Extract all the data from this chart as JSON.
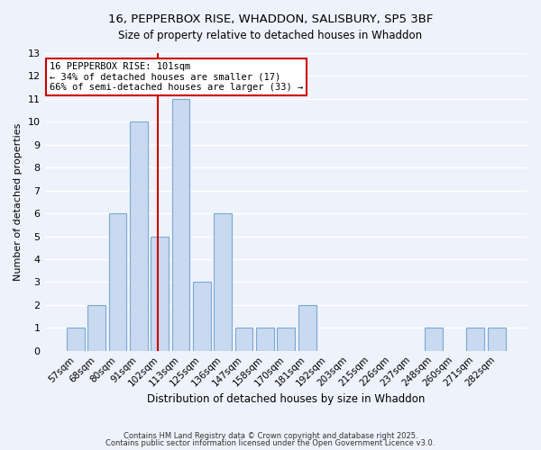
{
  "title1": "16, PEPPERBOX RISE, WHADDON, SALISBURY, SP5 3BF",
  "title2": "Size of property relative to detached houses in Whaddon",
  "xlabel": "Distribution of detached houses by size in Whaddon",
  "ylabel": "Number of detached properties",
  "categories": [
    "57sqm",
    "68sqm",
    "80sqm",
    "91sqm",
    "102sqm",
    "113sqm",
    "125sqm",
    "136sqm",
    "147sqm",
    "158sqm",
    "170sqm",
    "181sqm",
    "192sqm",
    "203sqm",
    "215sqm",
    "226sqm",
    "237sqm",
    "248sqm",
    "260sqm",
    "271sqm",
    "282sqm"
  ],
  "values": [
    1,
    2,
    6,
    10,
    5,
    11,
    3,
    6,
    1,
    1,
    1,
    2,
    0,
    0,
    0,
    0,
    0,
    1,
    0,
    1,
    1
  ],
  "bar_color": "#c9d9f0",
  "bar_edge_color": "#7aa8d4",
  "red_line_x": 3.925,
  "annotation_title": "16 PEPPERBOX RISE: 101sqm",
  "annotation_line1": "← 34% of detached houses are smaller (17)",
  "annotation_line2": "66% of semi-detached houses are larger (33) →",
  "annotation_box_color": "#ffffff",
  "annotation_box_edge": "#cc0000",
  "red_line_color": "#cc0000",
  "ylim": [
    0,
    13
  ],
  "yticks": [
    0,
    1,
    2,
    3,
    4,
    5,
    6,
    7,
    8,
    9,
    10,
    11,
    12,
    13
  ],
  "background_color": "#eef2fb",
  "grid_color": "#ffffff",
  "footer1": "Contains HM Land Registry data © Crown copyright and database right 2025.",
  "footer2": "Contains public sector information licensed under the Open Government Licence v3.0."
}
